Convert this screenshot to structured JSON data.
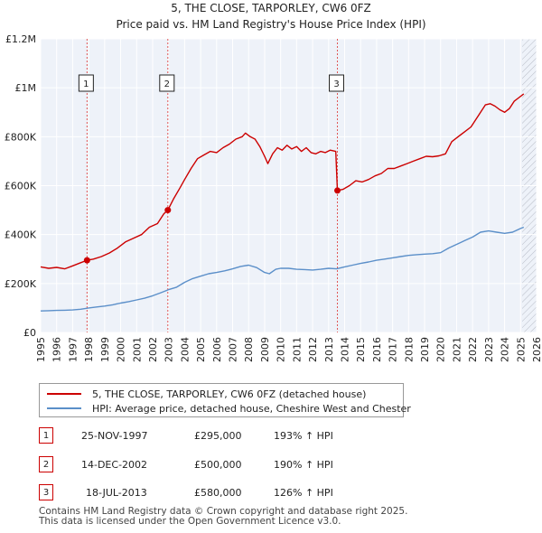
{
  "chart_data": {
    "type": "line",
    "title": "5, THE CLOSE, TARPORLEY, CW6 0FZ",
    "subtitle": "Price paid vs. HM Land Registry's House Price Index (HPI)",
    "xlim": [
      1995,
      2026
    ],
    "ylim": [
      0,
      1200000
    ],
    "x_ticks": [
      "1995",
      "1996",
      "1997",
      "1998",
      "1999",
      "2000",
      "2001",
      "2002",
      "2003",
      "2004",
      "2005",
      "2006",
      "2007",
      "2008",
      "2009",
      "2010",
      "2011",
      "2012",
      "2013",
      "2014",
      "2015",
      "2016",
      "2017",
      "2018",
      "2019",
      "2020",
      "2021",
      "2022",
      "2023",
      "2024",
      "2025",
      "2026"
    ],
    "y_ticks": [
      {
        "value": 0,
        "label": "£0"
      },
      {
        "value": 200000,
        "label": "£200K"
      },
      {
        "value": 400000,
        "label": "£400K"
      },
      {
        "value": 600000,
        "label": "£600K"
      },
      {
        "value": 800000,
        "label": "£800K"
      },
      {
        "value": 1000000,
        "label": "£1M"
      },
      {
        "value": 1200000,
        "label": "£1.2M"
      }
    ],
    "forecast_start": 2025.1,
    "series": [
      {
        "name": "5, THE CLOSE, TARPORLEY, CW6 0FZ (detached house)",
        "color": "#cc0000",
        "x": [
          1995.0,
          1995.5,
          1996.0,
          1996.5,
          1997.0,
          1997.5,
          1997.9,
          1998.3,
          1998.8,
          1999.3,
          1999.8,
          2000.3,
          2000.8,
          2001.3,
          2001.8,
          2002.3,
          2002.7,
          2002.95,
          2003.3,
          2003.7,
          2004.0,
          2004.4,
          2004.8,
          2005.2,
          2005.6,
          2006.0,
          2006.4,
          2006.8,
          2007.2,
          2007.6,
          2007.8,
          2008.1,
          2008.4,
          2008.7,
          2009.0,
          2009.2,
          2009.5,
          2009.8,
          2010.1,
          2010.4,
          2010.7,
          2011.0,
          2011.3,
          2011.6,
          2011.9,
          2012.2,
          2012.5,
          2012.8,
          2013.1,
          2013.45,
          2013.55,
          2013.9,
          2014.3,
          2014.7,
          2015.1,
          2015.5,
          2015.9,
          2016.3,
          2016.7,
          2017.1,
          2017.5,
          2017.9,
          2018.3,
          2018.7,
          2019.1,
          2019.5,
          2019.9,
          2020.3,
          2020.7,
          2021.1,
          2021.5,
          2021.9,
          2022.2,
          2022.5,
          2022.8,
          2023.1,
          2023.4,
          2023.7,
          2024.0,
          2024.3,
          2024.6,
          2024.9,
          2025.2
        ],
        "y": [
          268000,
          262000,
          266000,
          260000,
          272000,
          285000,
          295000,
          300000,
          310000,
          325000,
          345000,
          370000,
          385000,
          400000,
          430000,
          445000,
          485000,
          500000,
          545000,
          590000,
          625000,
          670000,
          710000,
          725000,
          740000,
          735000,
          755000,
          770000,
          790000,
          800000,
          815000,
          800000,
          790000,
          760000,
          720000,
          690000,
          730000,
          755000,
          745000,
          765000,
          750000,
          760000,
          740000,
          755000,
          735000,
          730000,
          740000,
          735000,
          745000,
          740000,
          580000,
          585000,
          600000,
          620000,
          615000,
          625000,
          640000,
          650000,
          670000,
          670000,
          680000,
          690000,
          700000,
          710000,
          720000,
          718000,
          722000,
          730000,
          780000,
          800000,
          820000,
          840000,
          870000,
          900000,
          930000,
          935000,
          925000,
          910000,
          900000,
          915000,
          945000,
          960000,
          975000
        ]
      },
      {
        "name": "HPI: Average price, detached house, Cheshire West and Chester",
        "color": "#5b8fc9",
        "x": [
          1995.0,
          1995.5,
          1996.0,
          1996.5,
          1997.0,
          1997.5,
          1998.0,
          1998.5,
          1999.0,
          1999.5,
          2000.0,
          2000.5,
          2001.0,
          2001.5,
          2002.0,
          2002.5,
          2003.0,
          2003.5,
          2004.0,
          2004.5,
          2005.0,
          2005.5,
          2006.0,
          2006.5,
          2007.0,
          2007.5,
          2008.0,
          2008.5,
          2009.0,
          2009.3,
          2009.7,
          2010.0,
          2010.5,
          2011.0,
          2011.5,
          2012.0,
          2012.5,
          2013.0,
          2013.5,
          2014.0,
          2014.5,
          2015.0,
          2015.5,
          2016.0,
          2016.5,
          2017.0,
          2017.5,
          2018.0,
          2018.5,
          2019.0,
          2019.5,
          2020.0,
          2020.5,
          2021.0,
          2021.5,
          2022.0,
          2022.5,
          2023.0,
          2023.5,
          2024.0,
          2024.5,
          2025.0,
          2025.2
        ],
        "y": [
          88000,
          89000,
          90000,
          91000,
          92000,
          95000,
          100000,
          104000,
          108000,
          113000,
          120000,
          126000,
          133000,
          140000,
          150000,
          162000,
          175000,
          185000,
          205000,
          220000,
          230000,
          240000,
          245000,
          252000,
          260000,
          270000,
          275000,
          265000,
          245000,
          240000,
          258000,
          262000,
          262000,
          258000,
          257000,
          255000,
          258000,
          262000,
          260000,
          268000,
          275000,
          282000,
          288000,
          295000,
          300000,
          305000,
          310000,
          315000,
          318000,
          320000,
          322000,
          326000,
          345000,
          360000,
          375000,
          390000,
          410000,
          415000,
          410000,
          405000,
          410000,
          425000,
          430000
        ]
      }
    ],
    "events": [
      {
        "label": "1",
        "x": 1997.9,
        "price": 295000
      },
      {
        "label": "2",
        "x": 2002.95,
        "price": 500000
      },
      {
        "label": "3",
        "x": 2013.55,
        "price": 580000
      }
    ]
  },
  "legend": [
    {
      "label": "5, THE CLOSE, TARPORLEY, CW6 0FZ (detached house)"
    },
    {
      "label": "HPI: Average price, detached house, Cheshire West and Chester"
    }
  ],
  "transactions": [
    {
      "num": "1",
      "date": "25-NOV-1997",
      "price": "£295,000",
      "hpi": "193% ↑ HPI"
    },
    {
      "num": "2",
      "date": "14-DEC-2002",
      "price": "£500,000",
      "hpi": "190% ↑ HPI"
    },
    {
      "num": "3",
      "date": "18-JUL-2013",
      "price": "£580,000",
      "hpi": "126% ↑ HPI"
    }
  ],
  "footer": {
    "line1": "Contains HM Land Registry data © Crown copyright and database right 2025.",
    "line2": "This data is licensed under the Open Government Licence v3.0."
  }
}
